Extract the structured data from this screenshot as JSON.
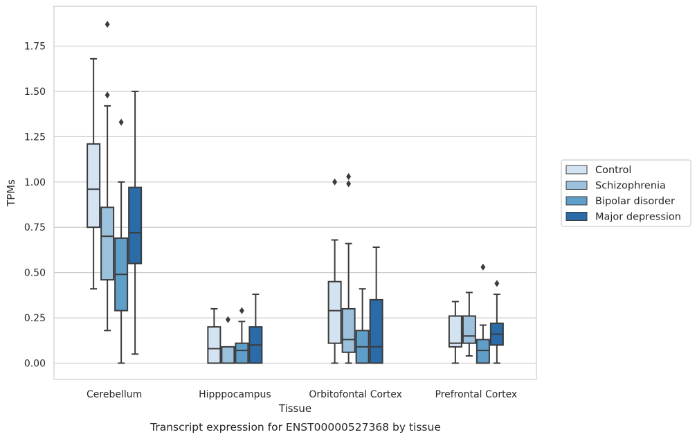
{
  "chart_data": {
    "type": "box",
    "caption": "Transcript expression for ENST00000527368 by tissue",
    "xlabel": "Tissue",
    "ylabel": "TPMs",
    "ylim": [
      -0.09,
      1.97
    ],
    "yticks": [
      "0.00",
      "0.25",
      "0.50",
      "0.75",
      "1.00",
      "1.25",
      "1.50",
      "1.75"
    ],
    "grid": "horizontal",
    "legend_position": "right",
    "categories": [
      "Cerebellum",
      "Hipppocampus",
      "Orbitofontal Cortex",
      "Prefrontal Cortex"
    ],
    "series": [
      {
        "name": "Control",
        "color": "#d4e3f2",
        "boxes": [
          {
            "whislo": 0.41,
            "q1": 0.75,
            "med": 0.96,
            "q3": 1.21,
            "whishi": 1.68,
            "fliers": []
          },
          {
            "whislo": 0.0,
            "q1": 0.0,
            "med": 0.08,
            "q3": 0.2,
            "whishi": 0.3,
            "fliers": []
          },
          {
            "whislo": 0.0,
            "q1": 0.11,
            "med": 0.29,
            "q3": 0.45,
            "whishi": 0.68,
            "fliers": [
              1.0
            ]
          },
          {
            "whislo": 0.0,
            "q1": 0.09,
            "med": 0.11,
            "q3": 0.26,
            "whishi": 0.34,
            "fliers": []
          }
        ]
      },
      {
        "name": "Schizophrenia",
        "color": "#9cc1dd",
        "boxes": [
          {
            "whislo": 0.18,
            "q1": 0.46,
            "med": 0.7,
            "q3": 0.86,
            "whishi": 1.42,
            "fliers": [
              1.48,
              1.87
            ]
          },
          {
            "whislo": 0.0,
            "q1": 0.0,
            "med": 0.0,
            "q3": 0.09,
            "whishi": 0.09,
            "fliers": [
              0.24
            ]
          },
          {
            "whislo": 0.0,
            "q1": 0.06,
            "med": 0.13,
            "q3": 0.3,
            "whishi": 0.66,
            "fliers": [
              0.99,
              1.03
            ]
          },
          {
            "whislo": 0.04,
            "q1": 0.11,
            "med": 0.15,
            "q3": 0.26,
            "whishi": 0.39,
            "fliers": []
          }
        ]
      },
      {
        "name": "Bipolar disorder",
        "color": "#5e9ec9",
        "boxes": [
          {
            "whislo": 0.0,
            "q1": 0.29,
            "med": 0.49,
            "q3": 0.69,
            "whishi": 1.0,
            "fliers": [
              1.33
            ]
          },
          {
            "whislo": 0.0,
            "q1": 0.0,
            "med": 0.07,
            "q3": 0.11,
            "whishi": 0.23,
            "fliers": [
              0.29
            ]
          },
          {
            "whislo": 0.0,
            "q1": 0.0,
            "med": 0.09,
            "q3": 0.18,
            "whishi": 0.41,
            "fliers": []
          },
          {
            "whislo": 0.0,
            "q1": 0.0,
            "med": 0.07,
            "q3": 0.13,
            "whishi": 0.21,
            "fliers": [
              0.53
            ]
          }
        ]
      },
      {
        "name": "Major depression",
        "color": "#2b6ba8",
        "boxes": [
          {
            "whislo": 0.05,
            "q1": 0.55,
            "med": 0.72,
            "q3": 0.97,
            "whishi": 1.5,
            "fliers": []
          },
          {
            "whislo": 0.0,
            "q1": 0.0,
            "med": 0.1,
            "q3": 0.2,
            "whishi": 0.38,
            "fliers": []
          },
          {
            "whislo": 0.0,
            "q1": 0.0,
            "med": 0.09,
            "q3": 0.35,
            "whishi": 0.64,
            "fliers": []
          },
          {
            "whislo": 0.0,
            "q1": 0.1,
            "med": 0.16,
            "q3": 0.22,
            "whishi": 0.38,
            "fliers": [
              0.44
            ]
          }
        ]
      }
    ]
  }
}
